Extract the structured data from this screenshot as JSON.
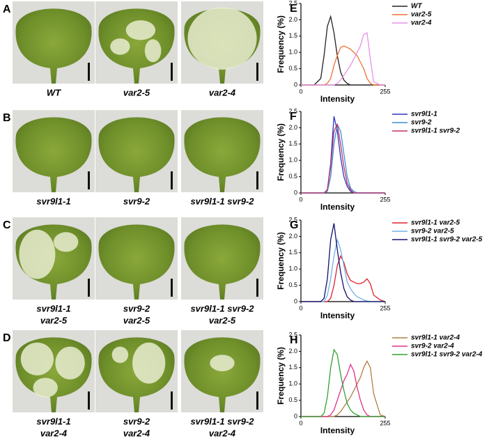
{
  "panels": [
    {
      "letter": "A",
      "leaves": [
        {
          "label": [
            "WT"
          ]
        },
        {
          "label": [
            "var2-5"
          ]
        },
        {
          "label": [
            "var2-4"
          ]
        }
      ]
    },
    {
      "letter": "B",
      "leaves": [
        {
          "label": [
            "svr9l1-1"
          ]
        },
        {
          "label": [
            "svr9-2"
          ]
        },
        {
          "label": [
            "svr9l1-1 svr9-2"
          ]
        }
      ]
    },
    {
      "letter": "C",
      "leaves": [
        {
          "label": [
            "svr9l1-1",
            "var2-5"
          ]
        },
        {
          "label": [
            "svr9-2",
            "var2-5"
          ]
        },
        {
          "label": [
            "svr9l1-1 svr9-2",
            "var2-5"
          ]
        }
      ]
    },
    {
      "letter": "D",
      "leaves": [
        {
          "label": [
            "svr9l1-1",
            "var2-4"
          ]
        },
        {
          "label": [
            "svr9-2",
            "var2-4"
          ]
        },
        {
          "label": [
            "svr9l1-1 svr9-2",
            "var2-4"
          ]
        }
      ]
    }
  ],
  "chart_data": [
    {
      "type": "line",
      "panel": "E",
      "xlabel": "Intensity",
      "ylabel": "Frequency (%)",
      "xlim": [
        0,
        255
      ],
      "ylim": [
        0,
        2.5
      ],
      "xticks": [
        0,
        255
      ],
      "yticks": [
        0,
        0.5,
        {
          "value": 1,
          "label": "1.0"
        },
        1.5,
        {
          "value": 2,
          "label": "2.0"
        },
        2.5
      ],
      "x": [
        0,
        40,
        60,
        70,
        80,
        90,
        100,
        110,
        120,
        130,
        140,
        150,
        160,
        170,
        180,
        190,
        200,
        210,
        220,
        240,
        255
      ],
      "series": [
        {
          "name": "WT",
          "color": "#222222",
          "values": [
            0,
            0,
            0.2,
            0.9,
            1.8,
            2.1,
            1.6,
            0.9,
            0.4,
            0.15,
            0.05,
            0,
            0,
            0,
            0,
            0,
            0,
            0,
            0,
            0,
            0
          ]
        },
        {
          "name": "var2-5",
          "color": "#f07030",
          "values": [
            0,
            0,
            0,
            0,
            0.05,
            0.2,
            0.6,
            0.9,
            1.15,
            1.2,
            1.15,
            1.1,
            1.0,
            0.9,
            0.7,
            0.5,
            0.2,
            0.05,
            0,
            0,
            0
          ]
        },
        {
          "name": "var2-4",
          "color": "#e890e8",
          "values": [
            0,
            0,
            0,
            0,
            0,
            0,
            0,
            0.05,
            0.15,
            0.3,
            0.45,
            0.6,
            0.8,
            1.0,
            1.2,
            1.55,
            1.6,
            0.8,
            0.1,
            0,
            0
          ]
        }
      ]
    },
    {
      "type": "line",
      "panel": "F",
      "xlabel": "Intensity",
      "ylabel": "Frequency (%)",
      "xlim": [
        0,
        255
      ],
      "ylim": [
        0,
        2.5
      ],
      "xticks": [
        0,
        255
      ],
      "yticks": [
        0,
        0.5,
        {
          "value": 1,
          "label": "1.0"
        },
        1.5,
        {
          "value": 2,
          "label": "2.0"
        },
        2.5
      ],
      "x": [
        0,
        40,
        60,
        70,
        80,
        90,
        100,
        110,
        120,
        130,
        140,
        150,
        160,
        170,
        180,
        190,
        200,
        210,
        220,
        240,
        255
      ],
      "series": [
        {
          "name": "svr9l1-1",
          "color": "#3030c0",
          "values": [
            0,
            0,
            0,
            0,
            0.1,
            0.9,
            2.35,
            1.9,
            1.1,
            0.5,
            0.2,
            0.05,
            0,
            0,
            0,
            0,
            0,
            0,
            0,
            0,
            0
          ]
        },
        {
          "name": "svr9-2",
          "color": "#3a8fd0",
          "values": [
            0,
            0,
            0,
            0,
            0.05,
            0.5,
            1.5,
            2.1,
            1.9,
            1.2,
            0.5,
            0.15,
            0.05,
            0,
            0,
            0,
            0,
            0,
            0,
            0,
            0
          ]
        },
        {
          "name": "svr9l1-1 svr9-2",
          "color": "#c0306a",
          "values": [
            0,
            0,
            0,
            0,
            0.1,
            0.8,
            1.9,
            2.1,
            1.5,
            0.8,
            0.3,
            0.1,
            0,
            0,
            0,
            0,
            0,
            0,
            0,
            0,
            0
          ]
        }
      ]
    },
    {
      "type": "line",
      "panel": "G",
      "xlabel": "Intensity",
      "ylabel": "Frequency (%)",
      "xlim": [
        0,
        255
      ],
      "ylim": [
        0,
        2.5
      ],
      "xticks": [
        0,
        255
      ],
      "yticks": [
        0,
        0.5,
        {
          "value": 1,
          "label": "1.0"
        },
        1.5,
        {
          "value": 2,
          "label": "2.0"
        },
        2.5
      ],
      "x": [
        0,
        40,
        60,
        70,
        80,
        90,
        100,
        110,
        120,
        130,
        140,
        150,
        160,
        170,
        180,
        190,
        200,
        210,
        220,
        240,
        255
      ],
      "series": [
        {
          "name": "svr9l1-1 var2-5",
          "color": "#e02030",
          "values": [
            0,
            0,
            0,
            0,
            0,
            0.1,
            0.5,
            1.1,
            1.4,
            1.2,
            0.85,
            0.65,
            0.6,
            0.55,
            0.55,
            0.6,
            0.7,
            0.55,
            0.2,
            0.05,
            0
          ]
        },
        {
          "name": "svr9-2 var2-5",
          "color": "#70b0e8",
          "values": [
            0,
            0,
            0,
            0,
            0.2,
            0.7,
            1.4,
            1.9,
            1.6,
            1.1,
            0.6,
            0.4,
            0.25,
            0.15,
            0.1,
            0.05,
            0.02,
            0,
            0,
            0,
            0
          ]
        },
        {
          "name": "svr9l1-1 svr9-2 var2-5",
          "color": "#101070",
          "values": [
            0,
            0,
            0,
            0.1,
            0.7,
            1.9,
            2.4,
            1.6,
            0.9,
            0.4,
            0.15,
            0.05,
            0,
            0,
            0,
            0,
            0,
            0,
            0,
            0,
            0
          ]
        }
      ]
    },
    {
      "type": "line",
      "panel": "H",
      "xlabel": "Intensity",
      "ylabel": "Frequency (%)",
      "xlim": [
        0,
        255
      ],
      "ylim": [
        0,
        2.5
      ],
      "xticks": [
        0,
        255
      ],
      "yticks": [
        0,
        0.5,
        {
          "value": 1,
          "label": "1.0"
        },
        1.5,
        {
          "value": 2,
          "label": "2.0"
        },
        2.5
      ],
      "x": [
        0,
        40,
        60,
        70,
        80,
        90,
        100,
        110,
        120,
        130,
        140,
        150,
        160,
        170,
        180,
        190,
        200,
        210,
        220,
        240,
        255
      ],
      "series": [
        {
          "name": "svr9l1-1 var2-4",
          "color": "#b08040",
          "values": [
            0,
            0,
            0,
            0,
            0,
            0,
            0,
            0.05,
            0.15,
            0.3,
            0.45,
            0.6,
            0.8,
            1.0,
            1.2,
            1.5,
            1.7,
            1.5,
            0.7,
            0.05,
            0
          ]
        },
        {
          "name": "svr9-2 var2-4",
          "color": "#e0308a",
          "values": [
            0,
            0,
            0,
            0,
            0,
            0.05,
            0.2,
            0.5,
            0.8,
            1.1,
            1.3,
            1.6,
            1.4,
            0.9,
            0.5,
            0.2,
            0.05,
            0,
            0,
            0,
            0
          ]
        },
        {
          "name": "svr9l1-1 svr9-2 var2-4",
          "color": "#30a030",
          "values": [
            0,
            0,
            0,
            0.1,
            0.6,
            1.5,
            2.05,
            1.9,
            1.3,
            0.8,
            0.4,
            0.2,
            0.1,
            0.05,
            0,
            0,
            0,
            0,
            0,
            0,
            0
          ]
        }
      ]
    }
  ]
}
